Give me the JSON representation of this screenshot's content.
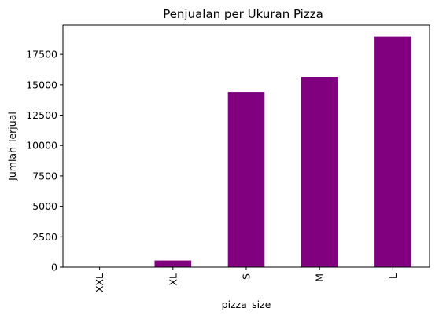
{
  "chart_data": {
    "type": "bar",
    "title": "Penjualan per Ukuran Pizza",
    "xlabel": "pizza_size",
    "ylabel": "Jumlah Terjual",
    "categories": [
      "XXL",
      "XL",
      "S",
      "M",
      "L"
    ],
    "values": [
      28,
      544,
      14403,
      15635,
      18956
    ],
    "ylim": [
      0,
      19900
    ],
    "yticks": [
      0,
      2500,
      5000,
      7500,
      10000,
      12500,
      15000,
      17500
    ],
    "bar_color": "#800080",
    "grid": false,
    "legend": "none"
  }
}
